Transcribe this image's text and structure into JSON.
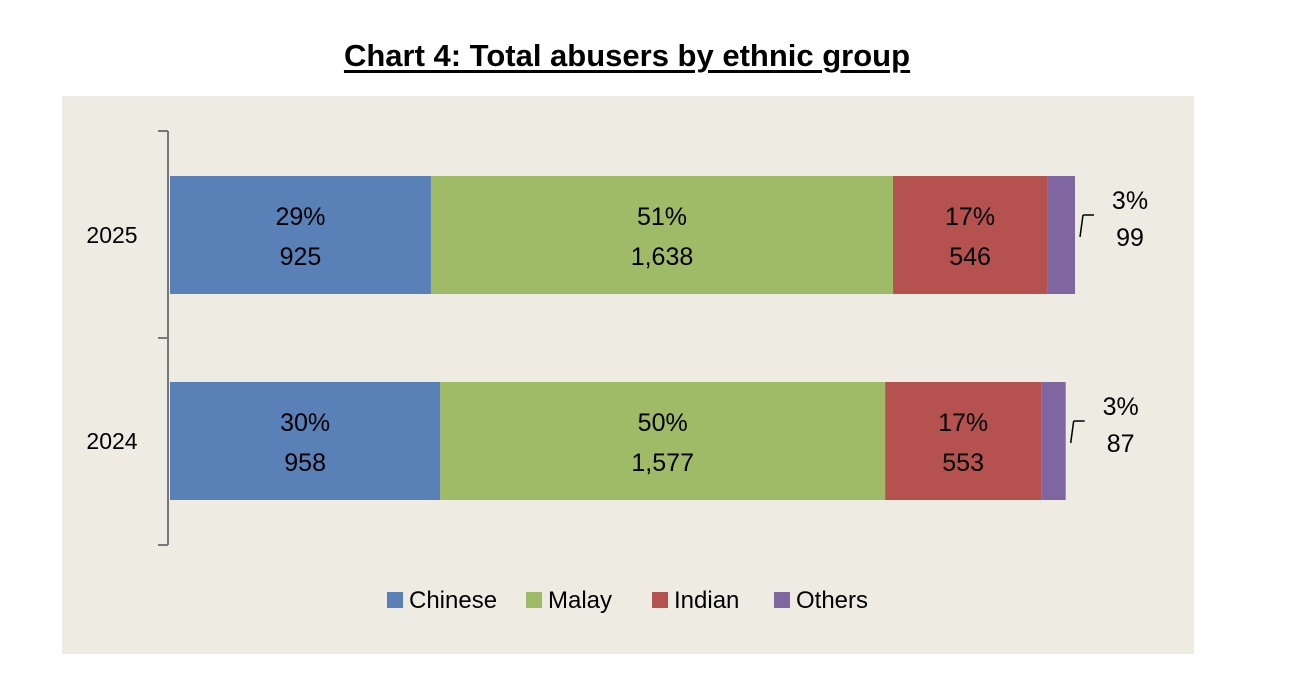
{
  "chart_data": {
    "type": "bar",
    "orientation": "horizontal",
    "stacked": true,
    "title": "Chart 4: Total abusers by ethnic group",
    "categories": [
      "2025",
      "2024"
    ],
    "series": [
      {
        "name": "Chinese",
        "color": "#5a80b8",
        "values": [
          925,
          958
        ],
        "percent_labels": [
          "29%",
          "30%"
        ],
        "value_labels": [
          "925",
          "958"
        ]
      },
      {
        "name": "Malay",
        "color": "#a0bb67",
        "values": [
          1638,
          1577
        ],
        "percent_labels": [
          "51%",
          "50%"
        ],
        "value_labels": [
          "1,638",
          "1,577"
        ]
      },
      {
        "name": "Indian",
        "color": "#b5524f",
        "values": [
          546,
          553
        ],
        "percent_labels": [
          "17%",
          "17%"
        ],
        "value_labels": [
          "546",
          "553"
        ]
      },
      {
        "name": "Others",
        "color": "#8066a1",
        "values": [
          99,
          87
        ],
        "percent_labels": [
          "3%",
          "3%"
        ],
        "value_labels": [
          "99",
          "87"
        ]
      }
    ],
    "legend_position": "bottom",
    "grid": false,
    "background_color": "#eeebe3"
  }
}
